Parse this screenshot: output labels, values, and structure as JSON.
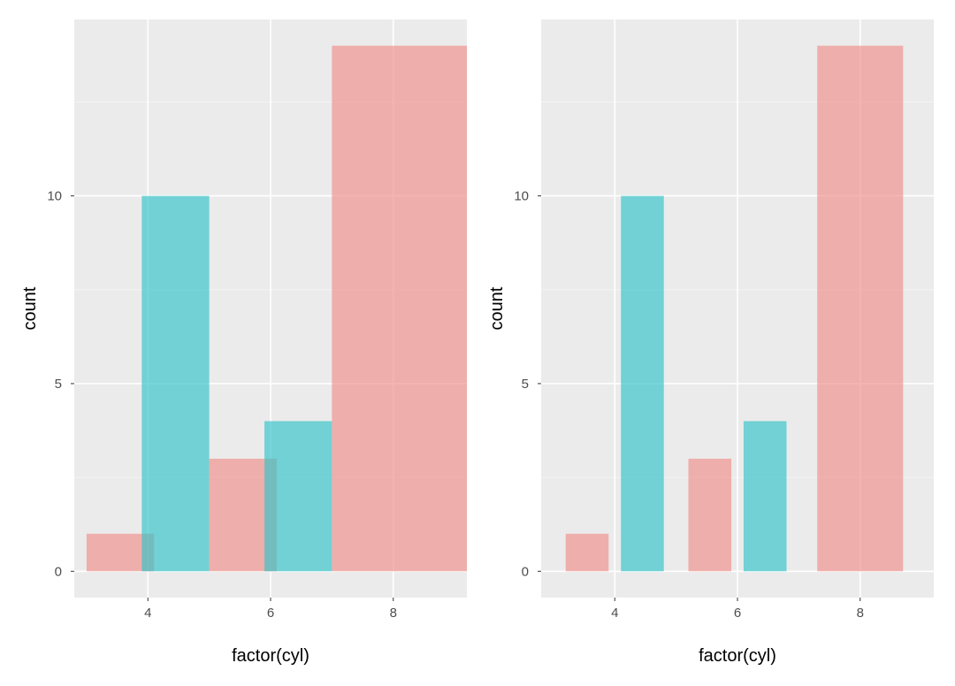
{
  "chart_data": [
    {
      "type": "bar",
      "layout": "overlapping",
      "xlabel": "factor(cyl)",
      "ylabel": "count",
      "x_ticks": [
        4,
        6,
        8
      ],
      "y_ticks": [
        0,
        5,
        10
      ],
      "xlim": [
        2.8,
        9.2
      ],
      "ylim": [
        -0.7,
        14.7
      ],
      "bars": [
        {
          "group": "pink",
          "x_start": 3,
          "x_end": 4.1,
          "value": 1
        },
        {
          "group": "teal",
          "x_start": 3.9,
          "x_end": 5,
          "value": 10
        },
        {
          "group": "pink",
          "x_start": 5,
          "x_end": 6.1,
          "value": 3
        },
        {
          "group": "teal",
          "x_start": 5.9,
          "x_end": 7,
          "value": 4
        },
        {
          "group": "pink",
          "x_start": 7,
          "x_end": 9.2,
          "value": 14
        }
      ]
    },
    {
      "type": "bar",
      "layout": "separated",
      "xlabel": "factor(cyl)",
      "ylabel": "count",
      "x_ticks": [
        4,
        6,
        8
      ],
      "y_ticks": [
        0,
        5,
        10
      ],
      "xlim": [
        2.8,
        9.2
      ],
      "ylim": [
        -0.7,
        14.7
      ],
      "bars": [
        {
          "group": "pink",
          "x_start": 3.2,
          "x_end": 3.9,
          "value": 1
        },
        {
          "group": "teal",
          "x_start": 4.1,
          "x_end": 4.8,
          "value": 10
        },
        {
          "group": "pink",
          "x_start": 5.2,
          "x_end": 5.9,
          "value": 3
        },
        {
          "group": "teal",
          "x_start": 6.1,
          "x_end": 6.8,
          "value": 4
        },
        {
          "group": "pink",
          "x_start": 7.3,
          "x_end": 8.7,
          "value": 14
        }
      ]
    }
  ],
  "colors": {
    "panel_bg": "#ebebeb",
    "grid_major": "#ffffff",
    "grid_minor": "#f4f4f4",
    "pink": "#f08e8a",
    "teal": "#32c4c8",
    "tick_text": "#4d4d4d",
    "tick_mark": "#333333"
  }
}
